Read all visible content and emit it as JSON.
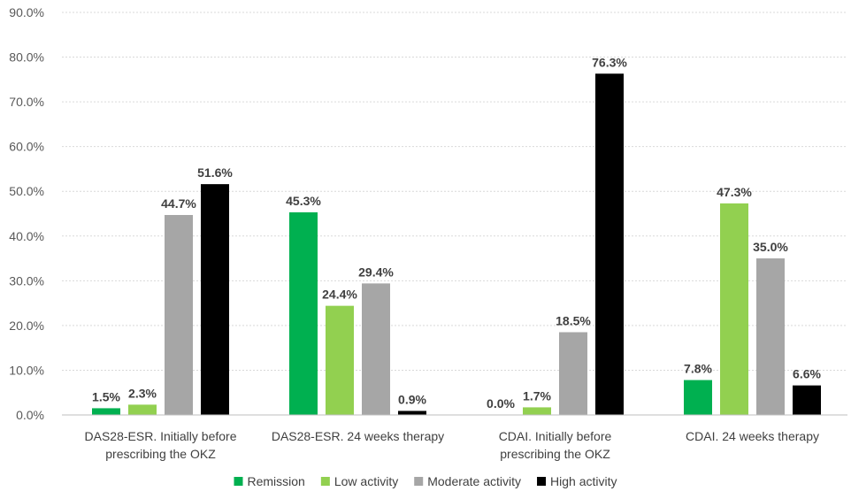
{
  "chart_data": {
    "type": "bar",
    "title": "",
    "xlabel": "",
    "ylabel": "",
    "ylim": [
      0,
      90
    ],
    "yticks": [
      0,
      10,
      20,
      30,
      40,
      50,
      60,
      70,
      80,
      90
    ],
    "ytick_labels": [
      "0.0%",
      "10.0%",
      "20.0%",
      "30.0%",
      "40.0%",
      "50.0%",
      "60.0%",
      "70.0%",
      "80.0%",
      "90.0%"
    ],
    "grid": true,
    "legend_position": "bottom",
    "categories": [
      [
        "DAS28-ESR. Initially before",
        "prescribing the OKZ"
      ],
      [
        "DAS28-ESR. 24 weeks therapy"
      ],
      [
        "CDAI. Initially before",
        "prescribing the OKZ"
      ],
      [
        "CDAI. 24 weeks therapy"
      ]
    ],
    "series": [
      {
        "name": "Remission",
        "color": "#00B050",
        "values": [
          1.5,
          45.3,
          0.0,
          7.8
        ],
        "labels": [
          "1.5%",
          "45.3%",
          "0.0%",
          "7.8%"
        ]
      },
      {
        "name": "Low activity",
        "color": "#92D050",
        "values": [
          2.3,
          24.4,
          1.7,
          47.3
        ],
        "labels": [
          "2.3%",
          "24.4%",
          "1.7%",
          "47.3%"
        ]
      },
      {
        "name": "Moderate activity",
        "color": "#A6A6A6",
        "values": [
          44.7,
          29.4,
          18.5,
          35.0
        ],
        "labels": [
          "44.7%",
          "29.4%",
          "18.5%",
          "35.0%"
        ]
      },
      {
        "name": "High activity",
        "color": "#000000",
        "values": [
          51.6,
          0.9,
          76.3,
          6.6
        ],
        "labels": [
          "51.6%",
          "0.9%",
          "76.3%",
          "6.6%"
        ]
      }
    ]
  }
}
